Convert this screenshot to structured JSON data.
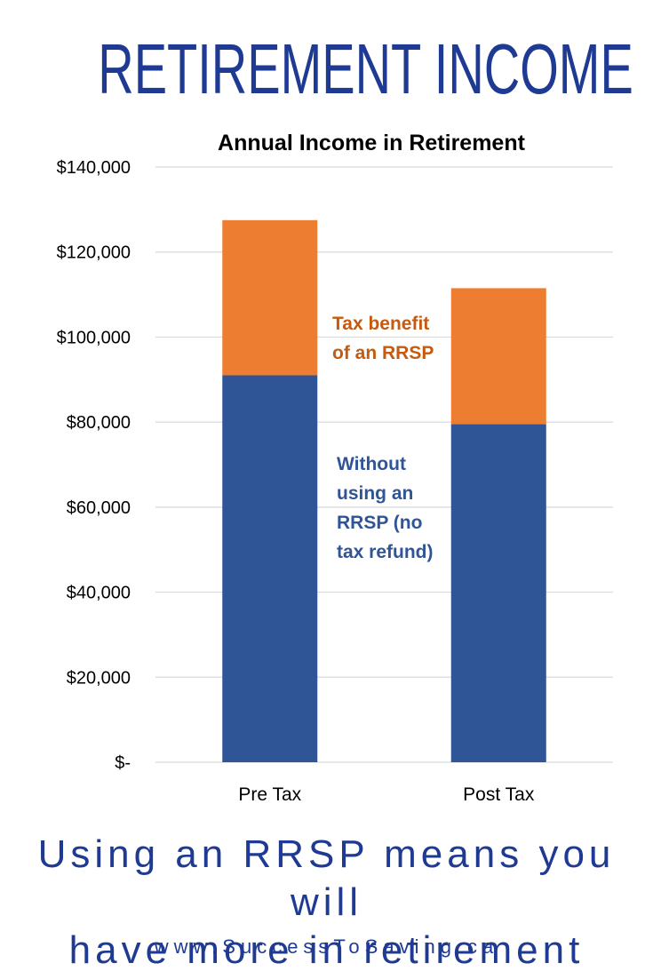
{
  "header": {
    "headline": "RETIREMENT INCOME"
  },
  "chart_data": {
    "type": "bar",
    "stacked": true,
    "title": "Annual Income in Retirement",
    "categories": [
      "Pre Tax",
      "Post Tax"
    ],
    "series": [
      {
        "name": "Without using an RRSP (no tax refund)",
        "values": [
          91000,
          79500
        ],
        "color": "#2f5597"
      },
      {
        "name": "Tax benefit of an RRSP",
        "values": [
          36500,
          32000
        ],
        "color": "#ed7d31"
      }
    ],
    "ylim": [
      0,
      140000
    ],
    "y_ticks": [
      0,
      20000,
      40000,
      60000,
      80000,
      100000,
      120000,
      140000
    ],
    "y_tick_labels": [
      "$-",
      "$20,000",
      "$40,000",
      "$60,000",
      "$80,000",
      "$100,000",
      "$120,000",
      "$140,000"
    ],
    "annotations": {
      "tax_benefit": [
        "Tax benefit",
        "of an RRSP"
      ],
      "without_rrsp": [
        "Without",
        "using an",
        "RRSP (no",
        "tax refund)"
      ]
    },
    "grid": true,
    "legend": "none"
  },
  "footer": {
    "tagline_line1": "Using an RRSP means you will",
    "tagline_line2": "have more in retirement",
    "website": "www.SuccessToSaving.ca"
  }
}
